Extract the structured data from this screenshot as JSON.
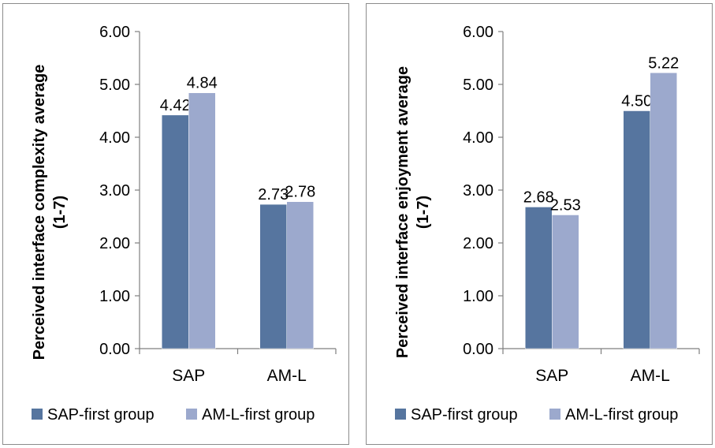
{
  "colors": {
    "sap_first": "#56759f",
    "aml_first": "#9ca9cd",
    "axis": "#7f7f7f",
    "text": "#000000"
  },
  "chart_data": [
    {
      "type": "bar",
      "ylabel": "Perceived interface complexity average (1-7)",
      "ylabel_lines": [
        "Perceived interface complexity average",
        "(1-7)"
      ],
      "categories": [
        "SAP",
        "AM-L"
      ],
      "y_ticks": [
        "0.00",
        "1.00",
        "2.00",
        "3.00",
        "4.00",
        "5.00",
        "6.00"
      ],
      "ylim": [
        0,
        6
      ],
      "legend_position": "bottom",
      "series": [
        {
          "name": "SAP-first group",
          "values": [
            4.42,
            2.73
          ],
          "labels": [
            "4.42",
            "2.73"
          ]
        },
        {
          "name": "AM-L-first group",
          "values": [
            4.84,
            2.78
          ],
          "labels": [
            "4.84",
            "2.78"
          ]
        }
      ]
    },
    {
      "type": "bar",
      "ylabel": "Perceived interface enjoyment  average (1-7)",
      "ylabel_lines": [
        "Perceived interface enjoyment  average",
        "(1-7)"
      ],
      "categories": [
        "SAP",
        "AM-L"
      ],
      "y_ticks": [
        "0.00",
        "1.00",
        "2.00",
        "3.00",
        "4.00",
        "5.00",
        "6.00"
      ],
      "ylim": [
        0,
        6
      ],
      "legend_position": "bottom",
      "series": [
        {
          "name": "SAP-first group",
          "values": [
            2.68,
            4.5
          ],
          "labels": [
            "2.68",
            "4.50"
          ]
        },
        {
          "name": "AM-L-first group",
          "values": [
            2.53,
            5.22
          ],
          "labels": [
            "2.53",
            "5.22"
          ]
        }
      ]
    }
  ]
}
